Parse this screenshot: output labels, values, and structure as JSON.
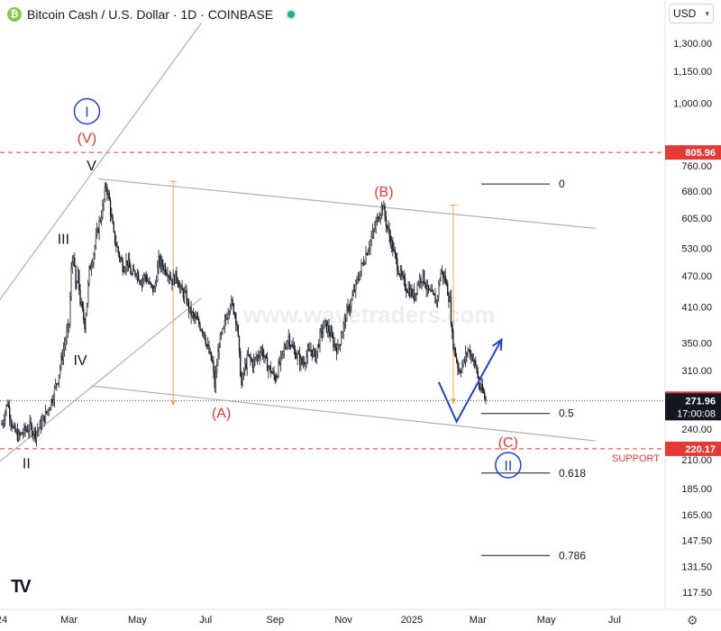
{
  "header": {
    "logo_glyph": "₿",
    "title": "Bitcoin Cash / U.S. Dollar · 1D · COINBASE",
    "status_color": "#22ab94"
  },
  "currency_selector": {
    "label": "USD",
    "icon": "chevron-down-icon"
  },
  "watermark": "www.wavetraders.com",
  "footer": {
    "logo": "TV",
    "settings_icon": "gear-icon"
  },
  "colors": {
    "red": "#e53935",
    "blue": "#1e3fd8",
    "orange": "#f7a64a",
    "grid": "#b0b0b0",
    "price_label_bg": "#131722"
  },
  "chart_data": {
    "type": "candlestick",
    "scale": "log",
    "y_ticks": [
      {
        "label": "1,300.00",
        "v": 1300
      },
      {
        "label": "1,150.00",
        "v": 1150
      },
      {
        "label": "1,000.00",
        "v": 1000
      },
      {
        "label": "760.00",
        "v": 760
      },
      {
        "label": "680.00",
        "v": 680
      },
      {
        "label": "605.00",
        "v": 605
      },
      {
        "label": "530.00",
        "v": 530
      },
      {
        "label": "470.00",
        "v": 470
      },
      {
        "label": "410.00",
        "v": 410
      },
      {
        "label": "350.00",
        "v": 350
      },
      {
        "label": "310.00",
        "v": 310
      },
      {
        "label": "240.00",
        "v": 240
      },
      {
        "label": "210.00",
        "v": 210
      },
      {
        "label": "185.00",
        "v": 185
      },
      {
        "label": "165.00",
        "v": 165
      },
      {
        "label": "147.50",
        "v": 147.5
      },
      {
        "label": "131.50",
        "v": 131.5
      },
      {
        "label": "117.50",
        "v": 117.5
      }
    ],
    "x_ticks": [
      {
        "label": "24",
        "d": 0
      },
      {
        "label": "Mar",
        "d": 60
      },
      {
        "label": "May",
        "d": 121
      },
      {
        "label": "Jul",
        "d": 182
      },
      {
        "label": "Sep",
        "d": 244
      },
      {
        "label": "Nov",
        "d": 305
      },
      {
        "label": "2025",
        "d": 366
      },
      {
        "label": "Mar",
        "d": 425
      },
      {
        "label": "May",
        "d": 486
      },
      {
        "label": "Jul",
        "d": 547
      }
    ],
    "price_path": [
      [
        0,
        245
      ],
      [
        5,
        270
      ],
      [
        10,
        240
      ],
      [
        15,
        232
      ],
      [
        20,
        238
      ],
      [
        25,
        242
      ],
      [
        30,
        236
      ],
      [
        35,
        245
      ],
      [
        40,
        258
      ],
      [
        45,
        275
      ],
      [
        50,
        300
      ],
      [
        55,
        340
      ],
      [
        60,
        380
      ],
      [
        62,
        480
      ],
      [
        64,
        520
      ],
      [
        66,
        440
      ],
      [
        68,
        470
      ],
      [
        70,
        420
      ],
      [
        72,
        400
      ],
      [
        74,
        380
      ],
      [
        76,
        420
      ],
      [
        78,
        480
      ],
      [
        82,
        520
      ],
      [
        86,
        580
      ],
      [
        90,
        630
      ],
      [
        93,
        700
      ],
      [
        96,
        650
      ],
      [
        98,
        600
      ],
      [
        100,
        560
      ],
      [
        104,
        520
      ],
      [
        108,
        490
      ],
      [
        112,
        500
      ],
      [
        116,
        470
      ],
      [
        120,
        480
      ],
      [
        124,
        460
      ],
      [
        128,
        470
      ],
      [
        132,
        450
      ],
      [
        136,
        440
      ],
      [
        140,
        500
      ],
      [
        144,
        490
      ],
      [
        148,
        480
      ],
      [
        152,
        460
      ],
      [
        156,
        470
      ],
      [
        160,
        440
      ],
      [
        164,
        430
      ],
      [
        168,
        400
      ],
      [
        172,
        390
      ],
      [
        176,
        380
      ],
      [
        180,
        370
      ],
      [
        184,
        340
      ],
      [
        188,
        320
      ],
      [
        190,
        290
      ],
      [
        194,
        350
      ],
      [
        198,
        370
      ],
      [
        200,
        390
      ],
      [
        204,
        420
      ],
      [
        208,
        400
      ],
      [
        210,
        380
      ],
      [
        212,
        330
      ],
      [
        214,
        290
      ],
      [
        216,
        310
      ],
      [
        220,
        330
      ],
      [
        224,
        320
      ],
      [
        228,
        330
      ],
      [
        232,
        340
      ],
      [
        236,
        320
      ],
      [
        240,
        310
      ],
      [
        244,
        300
      ],
      [
        248,
        320
      ],
      [
        252,
        340
      ],
      [
        256,
        360
      ],
      [
        260,
        340
      ],
      [
        264,
        330
      ],
      [
        268,
        320
      ],
      [
        272,
        330
      ],
      [
        276,
        340
      ],
      [
        280,
        330
      ],
      [
        284,
        360
      ],
      [
        288,
        380
      ],
      [
        292,
        370
      ],
      [
        296,
        350
      ],
      [
        300,
        340
      ],
      [
        304,
        370
      ],
      [
        308,
        400
      ],
      [
        312,
        420
      ],
      [
        316,
        450
      ],
      [
        320,
        480
      ],
      [
        324,
        510
      ],
      [
        328,
        540
      ],
      [
        332,
        570
      ],
      [
        336,
        610
      ],
      [
        340,
        640
      ],
      [
        344,
        580
      ],
      [
        348,
        540
      ],
      [
        352,
        500
      ],
      [
        356,
        470
      ],
      [
        360,
        450
      ],
      [
        364,
        440
      ],
      [
        368,
        430
      ],
      [
        372,
        460
      ],
      [
        376,
        470
      ],
      [
        380,
        440
      ],
      [
        384,
        430
      ],
      [
        388,
        420
      ],
      [
        392,
        480
      ],
      [
        396,
        460
      ],
      [
        400,
        420
      ],
      [
        402,
        360
      ],
      [
        404,
        340
      ],
      [
        408,
        310
      ],
      [
        412,
        320
      ],
      [
        416,
        340
      ],
      [
        420,
        330
      ],
      [
        424,
        310
      ],
      [
        426,
        290
      ],
      [
        430,
        280
      ],
      [
        432,
        272
      ]
    ],
    "close_price": 271.96,
    "price_labels": [
      {
        "value": "805.96",
        "price": 805.96,
        "bg": "#e53935"
      },
      {
        "value": "274.25",
        "price": 274.25,
        "bg": "#e53935"
      },
      {
        "value": "271.96",
        "price": 271.96,
        "bg": "#131722",
        "sub": "17:00:08"
      },
      {
        "value": "220.17",
        "price": 220.17,
        "bg": "#e53935"
      }
    ],
    "resistance": 805.96,
    "support": 220.17,
    "support_label": "SUPPORT",
    "wave_labels": [
      {
        "text": "I",
        "d": 76,
        "p": 965,
        "color": "#1e3fd8",
        "circle": true
      },
      {
        "text": "(V)",
        "d": 76,
        "p": 840,
        "color": "#e53935",
        "circle": false
      },
      {
        "text": "V",
        "d": 80,
        "p": 745,
        "color": "#131722",
        "circle": false
      },
      {
        "text": "III",
        "d": 55,
        "p": 540,
        "color": "#131722",
        "circle": false
      },
      {
        "text": "IV",
        "d": 70,
        "p": 318,
        "color": "#131722",
        "circle": false
      },
      {
        "text": "II",
        "d": 22,
        "p": 202,
        "color": "#131722",
        "circle": false
      },
      {
        "text": "(A)",
        "d": 196,
        "p": 252,
        "color": "#e53935",
        "circle": false
      },
      {
        "text": "(B)",
        "d": 341,
        "p": 665,
        "color": "#e53935",
        "circle": false
      },
      {
        "text": "(C)",
        "d": 452,
        "p": 222,
        "color": "#e53935",
        "circle": false
      },
      {
        "text": "II",
        "d": 452,
        "p": 205,
        "color": "#1e3fd8",
        "circle": true
      }
    ],
    "fib_levels": [
      {
        "label": "0",
        "price": 702
      },
      {
        "label": "0.5",
        "price": 257
      },
      {
        "label": "0.618",
        "price": 198
      },
      {
        "label": "0.786",
        "price": 138
      }
    ],
    "channel_upper": [
      [
        86,
        718
      ],
      [
        530,
        578
      ]
    ],
    "channel_lower": [
      [
        80,
        290
      ],
      [
        530,
        228
      ]
    ],
    "trend_upper": [
      [
        -12,
        395
      ],
      [
        178,
        1420
      ]
    ],
    "trend_lower": [
      [
        -12,
        200
      ],
      [
        178,
        426
      ]
    ],
    "measure_arrows": [
      {
        "d": 153,
        "from": 710,
        "to": 266
      },
      {
        "d": 403,
        "from": 640,
        "to": 268
      }
    ],
    "projection": [
      [
        390,
        295
      ],
      [
        406,
        248
      ],
      [
        446,
        355
      ]
    ]
  }
}
